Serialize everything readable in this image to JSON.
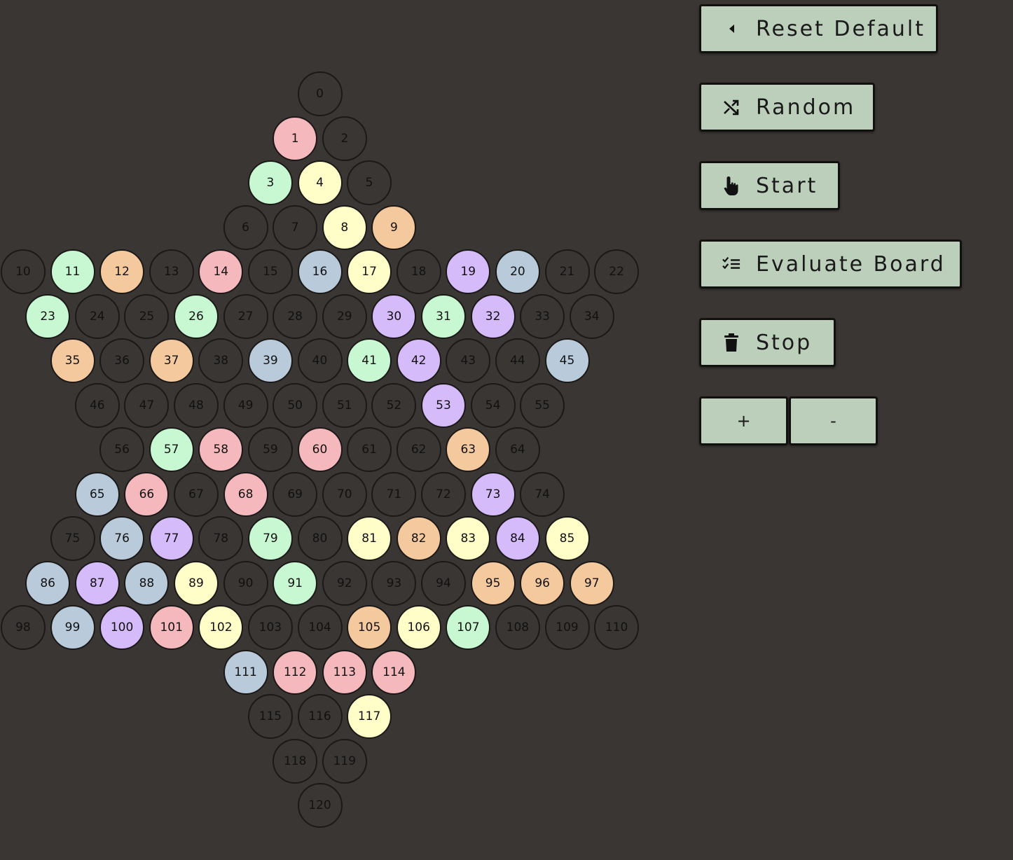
{
  "board": {
    "colors": {
      "empty": "#3a3634",
      "pink": "#f4b8bd",
      "green": "#c8f8d2",
      "yellow": "#fffec8",
      "orange": "#f5c99e",
      "blue": "#b9cadb",
      "purple": "#d6bbfb"
    },
    "rows": [
      [
        0
      ],
      [
        1,
        2
      ],
      [
        3,
        4,
        5
      ],
      [
        6,
        7,
        8,
        9
      ],
      [
        10,
        11,
        12,
        13,
        14,
        15,
        16,
        17,
        18,
        19,
        20,
        21,
        22
      ],
      [
        23,
        24,
        25,
        26,
        27,
        28,
        29,
        30,
        31,
        32,
        33,
        34
      ],
      [
        35,
        36,
        37,
        38,
        39,
        40,
        41,
        42,
        43,
        44,
        45
      ],
      [
        46,
        47,
        48,
        49,
        50,
        51,
        52,
        53,
        54,
        55
      ],
      [
        56,
        57,
        58,
        59,
        60,
        61,
        62,
        63,
        64
      ],
      [
        65,
        66,
        67,
        68,
        69,
        70,
        71,
        72,
        73,
        74
      ],
      [
        75,
        76,
        77,
        78,
        79,
        80,
        81,
        82,
        83,
        84,
        85
      ],
      [
        86,
        87,
        88,
        89,
        90,
        91,
        92,
        93,
        94,
        95,
        96,
        97
      ],
      [
        98,
        99,
        100,
        101,
        102,
        103,
        104,
        105,
        106,
        107,
        108,
        109,
        110
      ],
      [
        111,
        112,
        113,
        114
      ],
      [
        115,
        116,
        117
      ],
      [
        118,
        119
      ],
      [
        120
      ]
    ],
    "pieces": {
      "1": "pink",
      "3": "green",
      "4": "yellow",
      "8": "yellow",
      "9": "orange",
      "11": "green",
      "12": "orange",
      "14": "pink",
      "16": "blue",
      "17": "yellow",
      "19": "purple",
      "20": "blue",
      "23": "green",
      "26": "green",
      "30": "purple",
      "31": "green",
      "32": "purple",
      "35": "orange",
      "37": "orange",
      "39": "blue",
      "41": "green",
      "42": "purple",
      "45": "blue",
      "53": "purple",
      "57": "green",
      "58": "pink",
      "60": "pink",
      "63": "orange",
      "65": "blue",
      "66": "pink",
      "68": "pink",
      "73": "purple",
      "76": "blue",
      "77": "purple",
      "79": "green",
      "81": "yellow",
      "82": "orange",
      "83": "yellow",
      "84": "purple",
      "85": "yellow",
      "86": "blue",
      "87": "purple",
      "88": "blue",
      "89": "yellow",
      "91": "green",
      "95": "orange",
      "96": "orange",
      "97": "orange",
      "99": "blue",
      "100": "purple",
      "101": "pink",
      "102": "yellow",
      "105": "orange",
      "106": "yellow",
      "107": "green",
      "111": "blue",
      "112": "pink",
      "113": "pink",
      "114": "pink",
      "117": "yellow"
    }
  },
  "controls": {
    "reset_label": "Reset Default",
    "reset_icon": "caret-left-icon",
    "random_label": "Random",
    "random_icon": "shuffle-icon",
    "start_label": "Start",
    "start_icon": "hand-pointer-icon",
    "evaluate_label": "Evaluate Board",
    "evaluate_icon": "checklist-icon",
    "stop_label": "Stop",
    "stop_icon": "trash-icon",
    "plus_label": "+",
    "minus_label": "-",
    "button_color": "#bccfbb"
  }
}
